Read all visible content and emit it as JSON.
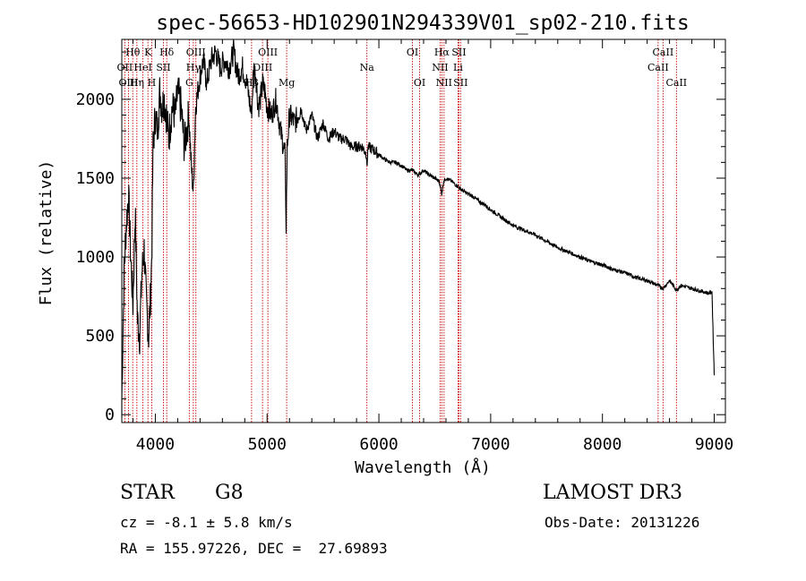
{
  "chart_data": {
    "type": "line",
    "title": "spec-56653-HD102901N294339V01_sp02-210.fits",
    "xlabel": "Wavelength (Å)",
    "ylabel": "Flux (relative)",
    "xlim": [
      3700,
      9100
    ],
    "ylim": [
      -50,
      2380
    ],
    "xticks": [
      4000,
      5000,
      6000,
      7000,
      8000,
      9000
    ],
    "yticks": [
      0,
      500,
      1000,
      1500,
      2000
    ],
    "series": [
      {
        "name": "flux",
        "x": [
          3700,
          3720,
          3740,
          3760,
          3780,
          3800,
          3820,
          3840,
          3860,
          3880,
          3900,
          3920,
          3940,
          3960,
          3970,
          3980,
          4000,
          4020,
          4040,
          4060,
          4080,
          4100,
          4120,
          4150,
          4180,
          4200,
          4230,
          4260,
          4300,
          4320,
          4340,
          4360,
          4380,
          4400,
          4430,
          4460,
          4500,
          4540,
          4580,
          4620,
          4660,
          4700,
          4740,
          4780,
          4820,
          4860,
          4880,
          4900,
          4920,
          4940,
          4960,
          4980,
          5000,
          5040,
          5080,
          5120,
          5160,
          5170,
          5180,
          5200,
          5250,
          5300,
          5350,
          5400,
          5450,
          5500,
          5550,
          5600,
          5650,
          5700,
          5750,
          5800,
          5850,
          5890,
          5895,
          5900,
          5950,
          6000,
          6050,
          6100,
          6150,
          6200,
          6250,
          6300,
          6350,
          6400,
          6450,
          6500,
          6540,
          6562,
          6580,
          6600,
          6650,
          6700,
          6750,
          6800,
          6850,
          6900,
          6950,
          7000,
          7100,
          7200,
          7300,
          7400,
          7500,
          7600,
          7700,
          7800,
          7900,
          8000,
          8100,
          8200,
          8300,
          8400,
          8498,
          8542,
          8600,
          8662,
          8700,
          8800,
          8850,
          8900,
          8950,
          8980,
          9000
        ],
        "y": [
          100,
          900,
          1200,
          1400,
          1000,
          700,
          1300,
          600,
          500,
          900,
          1050,
          700,
          500,
          800,
          1100,
          1700,
          1900,
          1800,
          2050,
          1950,
          2000,
          1900,
          1750,
          1950,
          1900,
          2050,
          1950,
          1700,
          1900,
          1600,
          1400,
          1950,
          2050,
          2150,
          2250,
          2100,
          2250,
          2300,
          2200,
          2250,
          2200,
          2300,
          2150,
          2200,
          2100,
          1900,
          2200,
          2150,
          1950,
          2000,
          2100,
          2050,
          1950,
          1900,
          2000,
          1800,
          1650,
          1200,
          1700,
          1900,
          1850,
          1950,
          1800,
          1900,
          1750,
          1850,
          1750,
          1800,
          1750,
          1750,
          1700,
          1700,
          1700,
          1650,
          1550,
          1700,
          1680,
          1650,
          1620,
          1600,
          1600,
          1580,
          1550,
          1550,
          1520,
          1550,
          1520,
          1500,
          1480,
          1400,
          1480,
          1500,
          1480,
          1450,
          1420,
          1400,
          1380,
          1350,
          1330,
          1300,
          1250,
          1200,
          1170,
          1140,
          1100,
          1060,
          1030,
          1000,
          970,
          950,
          920,
          900,
          870,
          850,
          820,
          800,
          850,
          790,
          820,
          800,
          790,
          780,
          770,
          780,
          250
        ]
      }
    ],
    "lines": [
      {
        "name": "Hθ",
        "wavelength": 3798,
        "row": 1
      },
      {
        "name": "OII",
        "wavelength": 3727,
        "row": 2
      },
      {
        "name": "OIII",
        "wavelength": 3760,
        "row": 3
      },
      {
        "name": "HeI",
        "wavelength": 3889,
        "row": 2
      },
      {
        "name": "Hη",
        "wavelength": 3835,
        "row": 3
      },
      {
        "name": "K",
        "wavelength": 3934,
        "row": 1
      },
      {
        "name": "SII",
        "wavelength": 4072,
        "row": 2
      },
      {
        "name": "H",
        "wavelength": 3968,
        "row": 3
      },
      {
        "name": "Hδ",
        "wavelength": 4102,
        "row": 1
      },
      {
        "name": "OIII",
        "wavelength": 4363,
        "row": 1
      },
      {
        "name": "Hγ",
        "wavelength": 4340,
        "row": 2
      },
      {
        "name": "G",
        "wavelength": 4304,
        "row": 3
      },
      {
        "name": "OIII",
        "wavelength": 5007,
        "row": 1
      },
      {
        "name": "OIII",
        "wavelength": 4959,
        "row": 2
      },
      {
        "name": "Hβ",
        "wavelength": 4861,
        "row": 3
      },
      {
        "name": "Mg",
        "wavelength": 5175,
        "row": 3
      },
      {
        "name": "Na",
        "wavelength": 5893,
        "row": 2
      },
      {
        "name": "OI",
        "wavelength": 6300,
        "row": 1
      },
      {
        "name": "OI",
        "wavelength": 6364,
        "row": 3
      },
      {
        "name": "Hα",
        "wavelength": 6563,
        "row": 1
      },
      {
        "name": "NII",
        "wavelength": 6548,
        "row": 2
      },
      {
        "name": "NII",
        "wavelength": 6583,
        "row": 3
      },
      {
        "name": "SII",
        "wavelength": 6716,
        "row": 1
      },
      {
        "name": "Li",
        "wavelength": 6708,
        "row": 2
      },
      {
        "name": "SII",
        "wavelength": 6731,
        "row": 3
      },
      {
        "name": "CaII",
        "wavelength": 8542,
        "row": 1
      },
      {
        "name": "CaII",
        "wavelength": 8498,
        "row": 2
      },
      {
        "name": "CaII",
        "wavelength": 8662,
        "row": 3
      }
    ]
  },
  "footer": {
    "object_class": "STAR",
    "subclass": "G8",
    "survey": "LAMOST DR3",
    "redshift": "cz = -8.1 ± 5.8 km/s",
    "obs_date": "Obs-Date: 20131226",
    "coords": "RA = 155.97226, DEC =  27.69893"
  },
  "colors": {
    "spectrum": "#000000",
    "line_marker": "#cc0000",
    "axes": "#000000"
  }
}
